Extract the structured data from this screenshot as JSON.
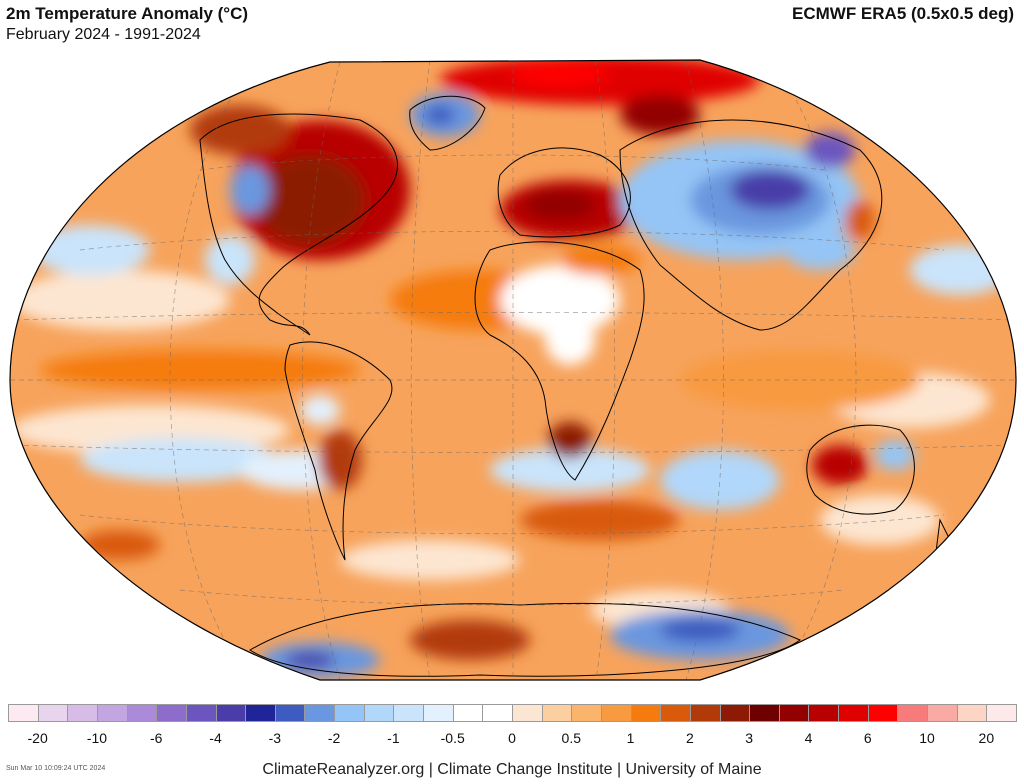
{
  "header": {
    "title": "2m Temperature Anomaly (°C)",
    "subtitle": "February 2024 - 1991-2024",
    "source": "ECMWF ERA5 (0.5x0.5 deg)"
  },
  "map": {
    "projection": "Winkel Tripel",
    "ocean_base_color": "#f7a35c"
  },
  "legend": {
    "colors": [
      "#fde9f2",
      "#e9d4ee",
      "#d7bce7",
      "#c3a5e2",
      "#ab8ad9",
      "#8d6ccc",
      "#6c55bf",
      "#4a3ca9",
      "#1f2599",
      "#3d5bc0",
      "#6a97df",
      "#94c5f6",
      "#b1d7fa",
      "#c9e4fb",
      "#e3f0fd",
      "#ffffff",
      "#ffffff",
      "#fde6d1",
      "#fbcf9f",
      "#fab46b",
      "#f89a3f",
      "#f57b0f",
      "#d95a0a",
      "#b23a08",
      "#8c1a05",
      "#6f0000",
      "#920000",
      "#b80000",
      "#df0000",
      "#ff0000",
      "#f77b7b",
      "#f9aaa2",
      "#fcd5c4",
      "#fde9ea"
    ],
    "labels": [
      "-20",
      "-10",
      "-6",
      "-4",
      "-3",
      "-2",
      "-1",
      "-0.5",
      "0",
      "0.5",
      "1",
      "2",
      "3",
      "4",
      "6",
      "10",
      "20"
    ]
  },
  "footer": {
    "credits": "ClimateReanalyzer.org | Climate Change Institute | University of Maine",
    "timestamp": "Sun Mar 10 10:09:24 UTC 2024"
  }
}
